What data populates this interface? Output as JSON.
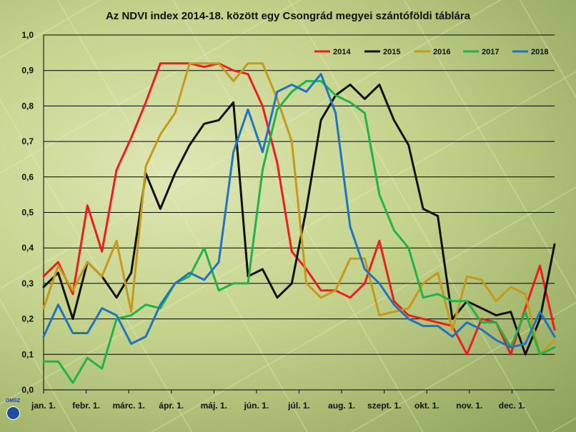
{
  "chart_data": {
    "type": "line",
    "title": "Az NDVI index 2014-18. között egy Csongrád megyei szántóföldi táblára",
    "ylim": [
      0,
      1.0
    ],
    "y_ticks": [
      "0,0",
      "0,1",
      "0,2",
      "0,3",
      "0,4",
      "0,5",
      "0,6",
      "0,7",
      "0,8",
      "0,9",
      "1,0"
    ],
    "x_tick_labels": [
      "jan. 1.",
      "febr. 1.",
      "márc. 1.",
      "ápr. 1.",
      "máj. 1.",
      "jún. 1.",
      "júl. 1.",
      "aug. 1.",
      "szept. 1.",
      "okt. 1.",
      "nov. 1.",
      "dec. 1."
    ],
    "grid": "horizontal",
    "legend_position": "top-right",
    "series": [
      {
        "name": "2014",
        "color": "#ee1c1c",
        "values": [
          0.32,
          0.36,
          0.27,
          0.52,
          0.39,
          0.62,
          0.71,
          0.81,
          0.92,
          0.92,
          0.92,
          0.91,
          0.92,
          0.9,
          0.89,
          0.8,
          0.64,
          0.39,
          0.34,
          0.28,
          0.28,
          0.26,
          0.3,
          0.42,
          0.25,
          0.21,
          0.2,
          0.19,
          0.18,
          0.1,
          0.2,
          0.19,
          0.1,
          0.23,
          0.35,
          0.17
        ]
      },
      {
        "name": "2015",
        "color": "#111111",
        "values": [
          0.29,
          0.33,
          0.2,
          0.36,
          0.32,
          0.26,
          0.33,
          0.61,
          0.51,
          0.61,
          0.69,
          0.75,
          0.76,
          0.81,
          0.32,
          0.34,
          0.26,
          0.3,
          0.51,
          0.76,
          0.83,
          0.86,
          0.82,
          0.86,
          0.76,
          0.69,
          0.51,
          0.49,
          0.2,
          0.25,
          0.23,
          0.21,
          0.22,
          0.1,
          0.2,
          0.41
        ]
      },
      {
        "name": "2016",
        "color": "#c49a1c",
        "values": [
          0.23,
          0.35,
          0.28,
          0.36,
          0.32,
          0.42,
          0.22,
          0.63,
          0.72,
          0.78,
          0.92,
          0.92,
          0.92,
          0.87,
          0.92,
          0.92,
          0.82,
          0.7,
          0.3,
          0.26,
          0.28,
          0.37,
          0.37,
          0.21,
          0.22,
          0.23,
          0.3,
          0.33,
          0.17,
          0.32,
          0.31,
          0.25,
          0.29,
          0.27,
          0.1,
          0.14
        ]
      },
      {
        "name": "2017",
        "color": "#21b24a",
        "values": [
          0.08,
          0.08,
          0.02,
          0.09,
          0.06,
          0.2,
          0.21,
          0.24,
          0.23,
          0.3,
          0.32,
          0.4,
          0.28,
          0.3,
          0.3,
          0.62,
          0.79,
          0.84,
          0.87,
          0.87,
          0.83,
          0.81,
          0.78,
          0.55,
          0.45,
          0.4,
          0.26,
          0.27,
          0.25,
          0.25,
          0.19,
          0.19,
          0.12,
          0.22,
          0.1,
          0.12
        ]
      },
      {
        "name": "2018",
        "color": "#1f74c2",
        "values": [
          0.15,
          0.24,
          0.16,
          0.16,
          0.23,
          0.21,
          0.13,
          0.15,
          0.24,
          0.3,
          0.33,
          0.31,
          0.36,
          0.67,
          0.79,
          0.67,
          0.84,
          0.86,
          0.84,
          0.89,
          0.78,
          0.46,
          0.34,
          0.3,
          0.24,
          0.2,
          0.18,
          0.18,
          0.15,
          0.19,
          0.17,
          0.14,
          0.12,
          0.13,
          0.22,
          0.15
        ]
      }
    ]
  },
  "logo": {
    "text": "OMSZ"
  }
}
